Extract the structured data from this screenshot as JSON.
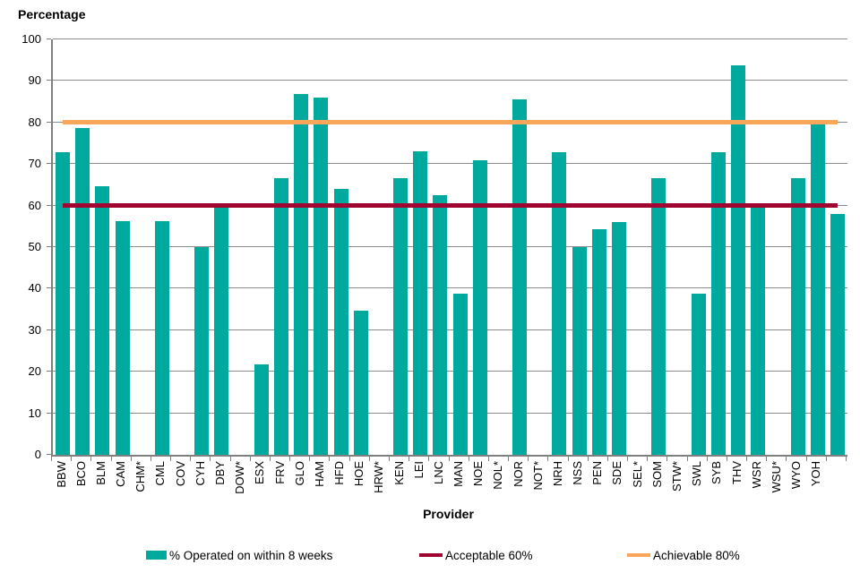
{
  "chart_data": {
    "type": "bar",
    "title": "Percentage",
    "xlabel": "Provider",
    "ylabel": "Percentage",
    "ylim": [
      0,
      100
    ],
    "ytick_step": 10,
    "grid": true,
    "legend_position": "bottom",
    "bar_color": "#00A99D",
    "axis_color": "#7f7f7f",
    "gridline_color": "#8c8c8c",
    "categories": [
      "BBW",
      "BCO",
      "BLM",
      "CAM",
      "CHM*",
      "CML",
      "COV",
      "CYH",
      "DBY",
      "DOW*",
      "ESX",
      "FRV",
      "GLO",
      "HAM",
      "HFD",
      "HOE",
      "HRW*",
      "KEN",
      "LEI",
      "LNC",
      "MAN",
      "NOE",
      "NOL*",
      "NOR",
      "NOT*",
      "NRH",
      "NSS",
      "PEN",
      "SDE",
      "SEL*",
      "SOM",
      "STW*",
      "SWL",
      "SYB",
      "THV",
      "WSR",
      "WSU*",
      "WYO",
      "YOH",
      ""
    ],
    "series": [
      {
        "name": "% Operated on within 8 weeks",
        "values": [
          72.8,
          78.6,
          64.6,
          56.2,
          null,
          56.2,
          null,
          50,
          59.8,
          null,
          21.8,
          66.5,
          86.8,
          86,
          64.1,
          34.6,
          null,
          66.5,
          73,
          62.4,
          38.8,
          70.9,
          null,
          85.6,
          null,
          72.8,
          50,
          54.4,
          56.1,
          null,
          66.5,
          null,
          38.9,
          72.9,
          93.7,
          59.9,
          null,
          66.5,
          79.8,
          58
        ]
      }
    ],
    "reference_lines": [
      {
        "label": "Acceptable 60%",
        "value": 60,
        "color": "#A00430",
        "thickness": 5
      },
      {
        "label": "Achievable 80%",
        "value": 80,
        "color": "#F9A65A",
        "thickness": 5
      }
    ]
  },
  "legend": {
    "items": [
      {
        "label": "% Operated on within 8 weeks",
        "swatch": "bar-swatch",
        "color": "#00A99D"
      },
      {
        "label": "Acceptable 60%",
        "swatch": "line-swatch",
        "color": "#A00430"
      },
      {
        "label": "Achievable 80%",
        "swatch": "line-swatch",
        "color": "#F9A65A"
      }
    ]
  }
}
